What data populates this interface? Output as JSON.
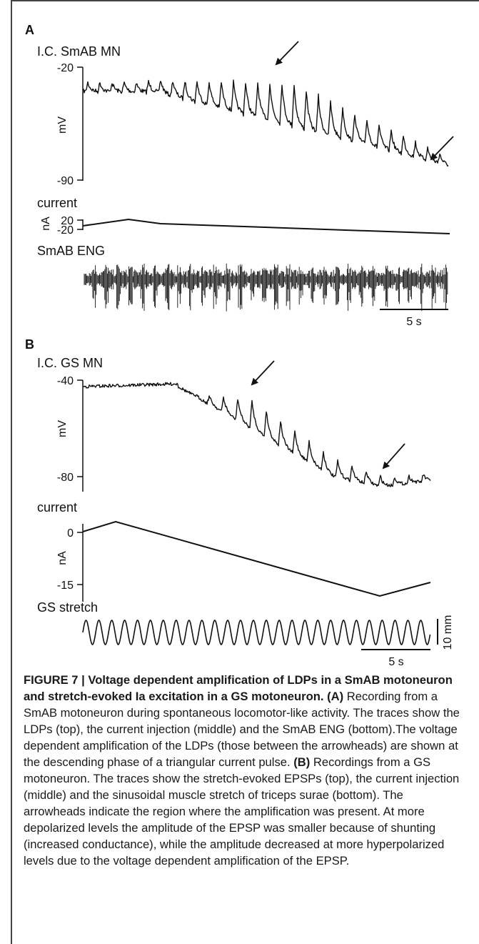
{
  "panels": {
    "a": {
      "label": "A",
      "trace1_label": "I.C. SmAB MN",
      "trace1_unit": "mV",
      "trace1_ticks": [
        "-20",
        "-90"
      ],
      "trace2_label": "current",
      "trace2_unit": "nA",
      "trace2_ticks": [
        "20",
        "-20"
      ],
      "trace3_label": "SmAB ENG",
      "scalebar_label": "5 s"
    },
    "b": {
      "label": "B",
      "trace1_label": "I.C. GS MN",
      "trace1_unit": "mV",
      "trace1_ticks": [
        "-40",
        "-80"
      ],
      "trace2_label": "current",
      "trace2_unit": "nA",
      "trace2_ticks": [
        "0",
        "-15"
      ],
      "trace3_label": "GS stretch",
      "stretch_scale_label": "10 mm",
      "scalebar_label": "5 s"
    }
  },
  "caption": {
    "title": "FIGURE 7 | Voltage dependent amplification of LDPs in a SmAB motoneuron and stretch-evoked Ia excitation in a GS motoneuron.",
    "ref_a": "(A)",
    "text_a": "Recording from a SmAB motoneuron during spontaneous locomotor-like activity. The traces show the LDPs (top), the current injection (middle) and the SmAB ENG (bottom).The voltage dependent amplification of the LDPs (those between the arrowheads) are shown at the descending phase of a triangular current pulse.",
    "ref_b": "(B)",
    "text_b": "Recordings from a GS motoneuron. The traces show the stretch-evoked EPSPs (top), the current injection (middle) and the sinusoidal muscle stretch of triceps surae (bottom). The arrowheads indicate the region where the amplification was present. At more depolarized levels the amplitude of the EPSP was smaller because of shunting (increased conductance), while the amplitude decreased at more hyperpolarized levels due to the voltage dependent amplification of the EPSP."
  }
}
